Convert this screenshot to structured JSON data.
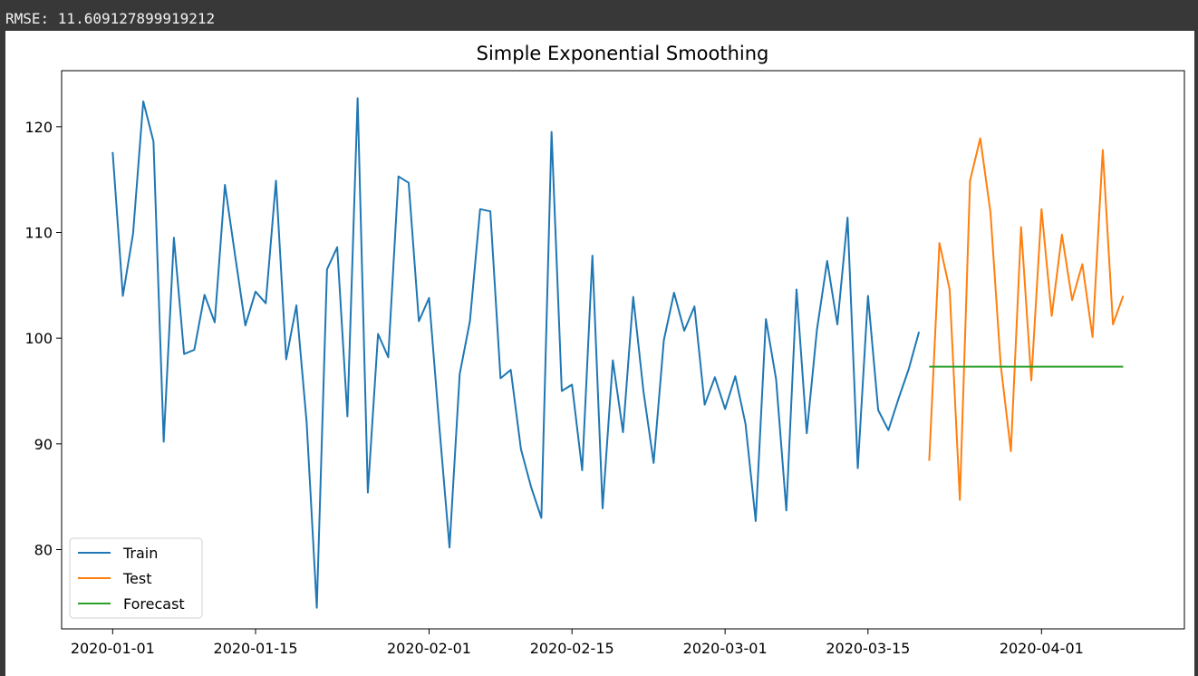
{
  "output": {
    "rmse_text": "RMSE: 11.609127899919212"
  },
  "chart_data": {
    "type": "line",
    "title": "Simple Exponential Smoothing",
    "xlabel": "",
    "ylabel": "",
    "xlim": [
      "2019-12-27",
      "2020-04-15"
    ],
    "ylim": [
      72.5,
      125.3
    ],
    "x_ticks": [
      "2020-01-01",
      "2020-01-15",
      "2020-02-01",
      "2020-02-15",
      "2020-03-01",
      "2020-03-15",
      "2020-04-01"
    ],
    "y_ticks": [
      80,
      90,
      100,
      110,
      120
    ],
    "grid": false,
    "legend_position": "lower-left",
    "series": [
      {
        "name": "Train",
        "color": "#1f77b4",
        "start_date": "2020-01-01",
        "values": [
          117.6,
          104.0,
          109.9,
          122.4,
          118.6,
          90.2,
          109.5,
          98.5,
          98.9,
          104.1,
          101.5,
          114.5,
          107.8,
          101.2,
          104.4,
          103.3,
          114.9,
          98.0,
          103.1,
          92.1,
          74.5,
          106.5,
          108.6,
          92.6,
          122.7,
          85.4,
          100.4,
          98.2,
          115.3,
          114.7,
          101.6,
          103.8,
          91.7,
          80.2,
          96.6,
          101.6,
          112.2,
          112.0,
          96.2,
          97.0,
          89.5,
          85.9,
          83.0,
          119.5,
          95.0,
          95.6,
          87.5,
          107.8,
          83.9,
          97.9,
          91.1,
          103.9,
          95.0,
          88.2,
          99.8,
          104.3,
          100.7,
          103.0,
          93.7,
          96.3,
          93.3,
          96.4,
          91.9,
          82.7,
          101.8,
          96.1,
          83.7,
          104.6,
          91.0,
          100.8,
          107.3,
          101.3,
          111.4,
          87.7,
          104.0,
          93.2,
          91.3,
          94.3,
          97.1,
          100.6
        ]
      },
      {
        "name": "Test",
        "color": "#ff7f0e",
        "start_date": "2020-03-21",
        "values": [
          88.4,
          109.0,
          104.6,
          84.7,
          114.9,
          118.9,
          111.9,
          97.5,
          89.3,
          110.5,
          96.0,
          112.2,
          102.1,
          109.8,
          103.6,
          107.0,
          100.1,
          117.8,
          101.3,
          104.0
        ]
      },
      {
        "name": "Forecast",
        "color": "#2ca02c",
        "start_date": "2020-03-21",
        "values": [
          97.3,
          97.3,
          97.3,
          97.3,
          97.3,
          97.3,
          97.3,
          97.3,
          97.3,
          97.3,
          97.3,
          97.3,
          97.3,
          97.3,
          97.3,
          97.3,
          97.3,
          97.3,
          97.3,
          97.3
        ]
      }
    ]
  }
}
